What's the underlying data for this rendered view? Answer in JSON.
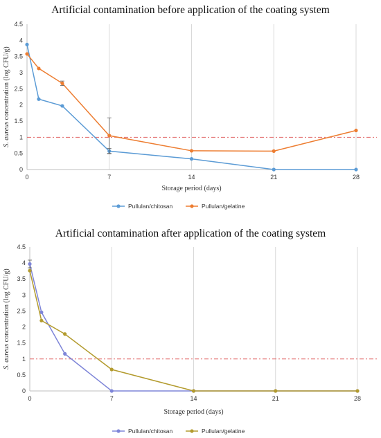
{
  "chart_data": [
    {
      "type": "line",
      "title": "Artificial contamination before application of the coating system",
      "xlabel": "Storage period (days)",
      "ylabel_italic": "S. aureus",
      "ylabel_rest": " concentration (log CFU/g)",
      "xlim": [
        0,
        28
      ],
      "ylim": [
        0,
        4.5
      ],
      "x_ticks": [
        0,
        7,
        14,
        21,
        28
      ],
      "y_ticks": [
        "0",
        "0.5",
        "1",
        "1.5",
        "2",
        "2.5",
        "3",
        "3.5",
        "4",
        "4.5"
      ],
      "grid": "vertical",
      "reference_line": 1.0,
      "legend_position": "bottom",
      "series": [
        {
          "name": "Pullulan/chitosan",
          "color": "#5b9bd5",
          "points": [
            [
              0,
              3.87
            ],
            [
              1,
              2.18
            ],
            [
              3,
              1.97
            ],
            [
              7,
              0.57
            ],
            [
              14,
              0.33
            ],
            [
              21,
              0.0
            ],
            [
              28,
              0.0
            ]
          ],
          "errors": [
            [
              7,
              0.08
            ]
          ]
        },
        {
          "name": "Pullulan/gelatine",
          "color": "#ed7d31",
          "points": [
            [
              0,
              3.58
            ],
            [
              1,
              3.13
            ],
            [
              3,
              2.67
            ],
            [
              7,
              1.05
            ],
            [
              14,
              0.58
            ],
            [
              21,
              0.57
            ],
            [
              28,
              1.21
            ]
          ],
          "errors": [
            [
              3,
              0.07
            ],
            [
              7,
              0.55
            ]
          ]
        }
      ]
    },
    {
      "type": "line",
      "title": "Artificial contamination after application of the coating system",
      "xlabel": "Storage period (days)",
      "ylabel_italic": "S. aureus",
      "ylabel_rest": " concentration (log CFU/g)",
      "xlim": [
        0,
        28
      ],
      "ylim": [
        0,
        4.5
      ],
      "x_ticks": [
        0,
        7,
        14,
        21,
        28
      ],
      "y_ticks": [
        "0",
        "0.5",
        "1",
        "1.5",
        "2",
        "2.5",
        "3",
        "3.5",
        "4",
        "4.5"
      ],
      "grid": "vertical",
      "reference_line": 1.0,
      "legend_position": "bottom",
      "series": [
        {
          "name": "Pullulan/chitosan",
          "color": "#7e85d8",
          "points": [
            [
              0,
              3.97
            ],
            [
              1,
              2.46
            ],
            [
              3,
              1.16
            ],
            [
              7,
              0.0
            ],
            [
              14,
              0.0
            ],
            [
              21,
              0.0
            ],
            [
              28,
              0.0
            ]
          ],
          "errors": [
            [
              0,
              0.12
            ]
          ]
        },
        {
          "name": "Pullulan/gelatine",
          "color": "#b39b2e",
          "points": [
            [
              0,
              3.76
            ],
            [
              1,
              2.2
            ],
            [
              3,
              1.78
            ],
            [
              7,
              0.67
            ],
            [
              14,
              0.0
            ],
            [
              21,
              0.0
            ],
            [
              28,
              0.0
            ]
          ],
          "errors": []
        }
      ]
    }
  ]
}
